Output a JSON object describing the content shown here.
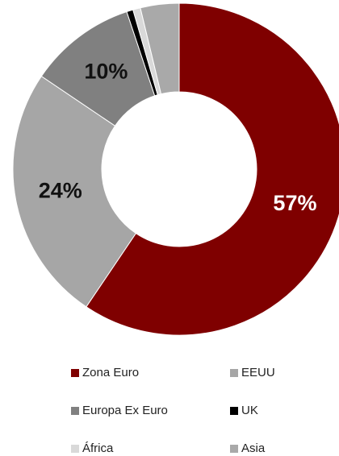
{
  "chart_data": {
    "type": "donut",
    "categories": [
      "Zona Euro",
      "EEUU",
      "Europa Ex Euro",
      "UK",
      "África",
      "Asia"
    ],
    "values": [
      57,
      24,
      10,
      0.6,
      0.7,
      3.6
    ],
    "value_labels": [
      "57%",
      "24%",
      "10%",
      null,
      null,
      null
    ],
    "colors": [
      "#7f0000",
      "#a6a6a6",
      "#808080",
      "#000000",
      "#d9d9d9",
      "#a9a9a9"
    ],
    "legend": "bottom"
  }
}
